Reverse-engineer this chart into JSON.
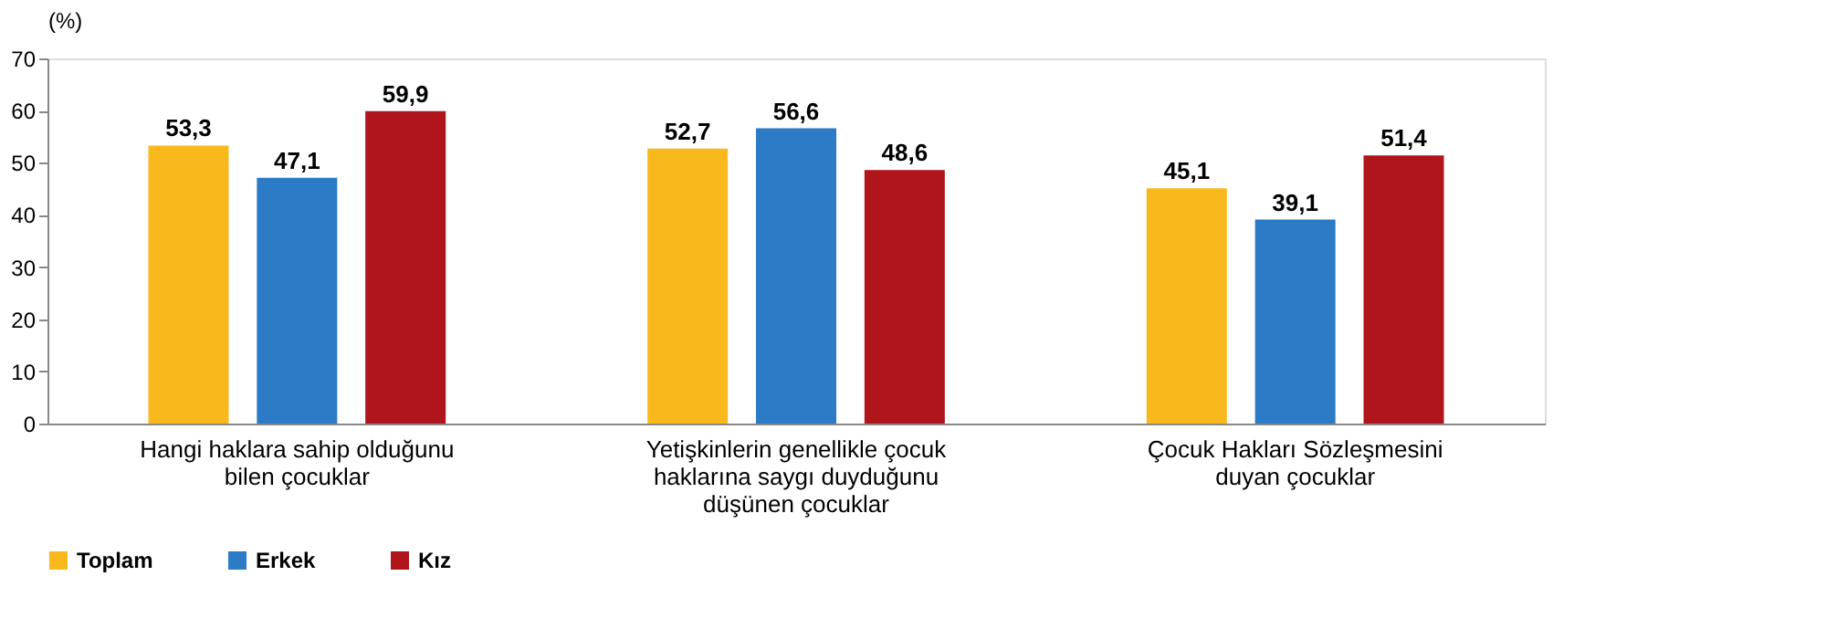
{
  "chart_data": {
    "type": "bar",
    "ylabel": "(%)",
    "categories": [
      "Hangi haklara sahip olduğunu bilen çocuklar",
      "Yetişkinlerin genellikle çocuk haklarına saygı duyduğunu düşünen çocuklar",
      "Çocuk Hakları Sözleşmesini duyan çocuklar"
    ],
    "series": [
      {
        "name": "Toplam",
        "color": "#f9b91c",
        "values": [
          53.3,
          52.7,
          45.1
        ],
        "value_labels": [
          "53,3",
          "52,7",
          "45,1"
        ]
      },
      {
        "name": "Erkek",
        "color": "#2c7bc6",
        "values": [
          47.1,
          56.6,
          39.1
        ],
        "value_labels": [
          "47,1",
          "56,6",
          "39,1"
        ]
      },
      {
        "name": "Kız",
        "color": "#b0151c",
        "values": [
          59.9,
          48.6,
          51.4
        ],
        "value_labels": [
          "59,9",
          "48,6",
          "51,4"
        ]
      }
    ],
    "ylim": [
      0,
      70
    ],
    "yticks": [
      0,
      10,
      20,
      30,
      40,
      50,
      60,
      70
    ],
    "grid": false,
    "legend": "bottom"
  }
}
